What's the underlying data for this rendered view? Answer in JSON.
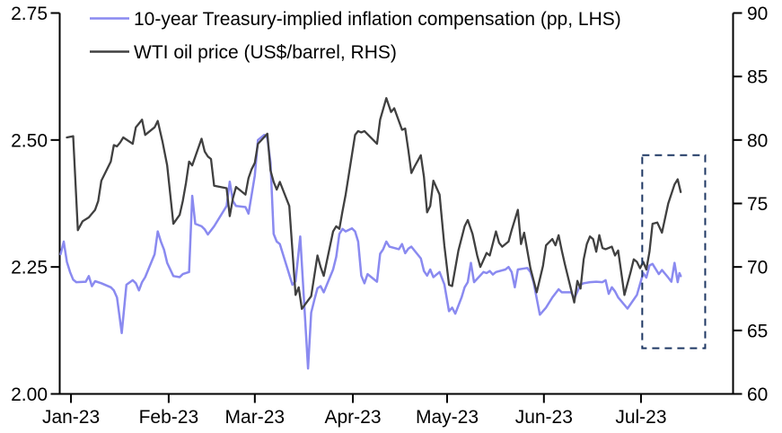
{
  "chart_data": {
    "type": "line",
    "title": "",
    "legend_position": "top-left",
    "grid": false,
    "left_axis": {
      "side": "left",
      "labels": [
        "2.75",
        "2.50",
        "2.25",
        "2.00"
      ],
      "values": [
        2.75,
        2.5,
        2.25,
        2.0
      ],
      "range": [
        2.0,
        2.75
      ]
    },
    "right_axis": {
      "side": "right",
      "labels": [
        "90",
        "85",
        "80",
        "75",
        "70",
        "65",
        "60"
      ],
      "values": [
        90,
        85,
        80,
        75,
        70,
        65,
        60
      ],
      "range": [
        60,
        90
      ]
    },
    "x_axis": {
      "tick_labels": [
        "Jan-23",
        "Feb-23",
        "Mar-23",
        "Apr-23",
        "May-23",
        "Jun-23",
        "Jul-23"
      ],
      "tick_days": [
        3.3,
        34.5,
        62,
        93.3,
        123.4,
        154.3,
        185.3
      ],
      "domain_days": [
        -0.3,
        214.7
      ]
    },
    "series": [
      {
        "id": "breakeven",
        "name": "10-year Treasury-implied inflation compensation (pp, LHS)",
        "axis": "left",
        "color": "#8A8AF0",
        "stroke_width": 2.5,
        "points": [
          [
            0,
            2.275
          ],
          [
            1,
            2.3
          ],
          [
            2,
            2.26
          ],
          [
            3,
            2.24
          ],
          [
            4,
            2.225
          ],
          [
            5,
            2.22
          ],
          [
            8,
            2.221
          ],
          [
            9,
            2.232
          ],
          [
            10,
            2.212
          ],
          [
            11,
            2.222
          ],
          [
            13,
            2.218
          ],
          [
            16,
            2.21
          ],
          [
            17,
            2.204
          ],
          [
            18,
            2.19
          ],
          [
            19.5,
            2.12
          ],
          [
            21,
            2.215
          ],
          [
            23,
            2.224
          ],
          [
            24,
            2.218
          ],
          [
            25,
            2.204
          ],
          [
            26,
            2.22
          ],
          [
            27,
            2.23
          ],
          [
            30,
            2.275
          ],
          [
            31,
            2.32
          ],
          [
            32,
            2.3
          ],
          [
            33,
            2.284
          ],
          [
            34,
            2.258
          ],
          [
            36,
            2.232
          ],
          [
            38,
            2.23
          ],
          [
            39,
            2.236
          ],
          [
            41,
            2.24
          ],
          [
            42,
            2.39
          ],
          [
            43,
            2.335
          ],
          [
            45,
            2.33
          ],
          [
            46,
            2.324
          ],
          [
            47,
            2.314
          ],
          [
            49,
            2.33
          ],
          [
            52,
            2.36
          ],
          [
            53,
            2.37
          ],
          [
            54,
            2.418
          ],
          [
            55,
            2.38
          ],
          [
            56,
            2.37
          ],
          [
            59,
            2.368
          ],
          [
            60,
            2.355
          ],
          [
            62,
            2.43
          ],
          [
            63,
            2.5
          ],
          [
            65,
            2.51
          ],
          [
            66,
            2.504
          ],
          [
            67,
            2.455
          ],
          [
            68,
            2.315
          ],
          [
            69,
            2.3
          ],
          [
            70,
            2.295
          ],
          [
            73,
            2.235
          ],
          [
            74,
            2.215
          ],
          [
            75,
            2.222
          ],
          [
            76.5,
            2.31
          ],
          [
            79,
            2.05
          ],
          [
            80,
            2.16
          ],
          [
            81,
            2.185
          ],
          [
            82,
            2.208
          ],
          [
            83,
            2.212
          ],
          [
            84,
            2.2
          ],
          [
            87,
            2.245
          ],
          [
            88,
            2.27
          ],
          [
            89,
            2.315
          ],
          [
            90,
            2.325
          ],
          [
            91,
            2.32
          ],
          [
            93,
            2.326
          ],
          [
            94,
            2.32
          ],
          [
            95,
            2.3
          ],
          [
            96,
            2.233
          ],
          [
            97,
            2.218
          ],
          [
            98,
            2.236
          ],
          [
            101,
            2.221
          ],
          [
            102,
            2.276
          ],
          [
            103,
            2.285
          ],
          [
            104,
            2.3
          ],
          [
            105,
            2.29
          ],
          [
            108,
            2.285
          ],
          [
            109,
            2.295
          ],
          [
            110,
            2.277
          ],
          [
            111,
            2.286
          ],
          [
            112,
            2.29
          ],
          [
            115,
            2.267
          ],
          [
            116,
            2.242
          ],
          [
            117,
            2.233
          ],
          [
            118,
            2.245
          ],
          [
            119,
            2.23
          ],
          [
            121,
            2.24
          ],
          [
            122.5,
            2.216
          ],
          [
            124,
            2.163
          ],
          [
            125,
            2.17
          ],
          [
            126,
            2.158
          ],
          [
            128,
            2.19
          ],
          [
            129,
            2.21
          ],
          [
            130,
            2.22
          ],
          [
            131,
            2.258
          ],
          [
            132,
            2.22
          ],
          [
            135,
            2.24
          ],
          [
            136,
            2.238
          ],
          [
            137,
            2.242
          ],
          [
            138,
            2.235
          ],
          [
            139,
            2.24
          ],
          [
            142,
            2.245
          ],
          [
            143,
            2.25
          ],
          [
            144,
            2.24
          ],
          [
            145,
            2.21
          ],
          [
            146,
            2.245
          ],
          [
            149,
            2.248
          ],
          [
            150,
            2.24
          ],
          [
            151,
            2.22
          ],
          [
            153,
            2.156
          ],
          [
            155,
            2.17
          ],
          [
            157,
            2.19
          ],
          [
            159,
            2.206
          ],
          [
            160,
            2.2
          ],
          [
            163,
            2.2
          ],
          [
            164,
            2.188
          ],
          [
            166,
            2.215
          ],
          [
            167,
            2.218
          ],
          [
            169,
            2.22
          ],
          [
            171,
            2.221
          ],
          [
            173,
            2.22
          ],
          [
            174,
            2.224
          ],
          [
            175,
            2.197
          ],
          [
            176,
            2.21
          ],
          [
            177,
            2.202
          ],
          [
            178,
            2.19
          ],
          [
            181,
            2.168
          ],
          [
            184,
            2.195
          ],
          [
            186,
            2.238
          ],
          [
            187,
            2.229
          ],
          [
            188,
            2.253
          ],
          [
            189,
            2.256
          ],
          [
            191,
            2.236
          ],
          [
            192,
            2.244
          ],
          [
            194,
            2.229
          ],
          [
            195,
            2.221
          ],
          [
            196,
            2.258
          ],
          [
            197,
            2.22
          ],
          [
            197.6,
            2.238
          ],
          [
            198,
            2.232
          ]
        ]
      },
      {
        "id": "wti",
        "name": "WTI oil price (US$/barrel, RHS)",
        "axis": "right",
        "color": "#404040",
        "stroke_width": 2.3,
        "points": [
          [
            2,
            80.2
          ],
          [
            4,
            80.3
          ],
          [
            5.5,
            72.9
          ],
          [
            7,
            73.6
          ],
          [
            9,
            73.9
          ],
          [
            10,
            74.2
          ],
          [
            11,
            74.5
          ],
          [
            12,
            75.2
          ],
          [
            13,
            76.8
          ],
          [
            16,
            78.3
          ],
          [
            17,
            79.6
          ],
          [
            18,
            79.5
          ],
          [
            19,
            79.8
          ],
          [
            20,
            80.2
          ],
          [
            23,
            79.7
          ],
          [
            24,
            81.0
          ],
          [
            25,
            81.3
          ],
          [
            26,
            81.6
          ],
          [
            27,
            80.4
          ],
          [
            30,
            81.0
          ],
          [
            31,
            81.5
          ],
          [
            32.5,
            79.9
          ],
          [
            34,
            78.0
          ],
          [
            36,
            73.4
          ],
          [
            38,
            74.1
          ],
          [
            39,
            75.2
          ],
          [
            40,
            76.6
          ],
          [
            41,
            78.3
          ],
          [
            42,
            78.0
          ],
          [
            45,
            80.1
          ],
          [
            46,
            79.1
          ],
          [
            47,
            78.7
          ],
          [
            48,
            78.5
          ],
          [
            49,
            76.4
          ],
          [
            53,
            76.2
          ],
          [
            54,
            74.0
          ],
          [
            55,
            75.4
          ],
          [
            56,
            76.3
          ],
          [
            59,
            75.7
          ],
          [
            60,
            77.0
          ],
          [
            61,
            77.7
          ],
          [
            62,
            78.2
          ],
          [
            63,
            79.7
          ],
          [
            66,
            80.5
          ],
          [
            67,
            77.6
          ],
          [
            68,
            76.7
          ],
          [
            69,
            76.1
          ],
          [
            70,
            76.7
          ],
          [
            73,
            74.8
          ],
          [
            74,
            71.3
          ],
          [
            75,
            67.8
          ],
          [
            76,
            68.4
          ],
          [
            77,
            66.7
          ],
          [
            80,
            67.7
          ],
          [
            81,
            69.3
          ],
          [
            82,
            70.9
          ],
          [
            83,
            70.0
          ],
          [
            84,
            69.3
          ],
          [
            87,
            72.8
          ],
          [
            88,
            73.2
          ],
          [
            89,
            73.0
          ],
          [
            90,
            74.4
          ],
          [
            91,
            75.7
          ],
          [
            94,
            80.4
          ],
          [
            95,
            80.7
          ],
          [
            96,
            80.6
          ],
          [
            97,
            80.7
          ],
          [
            101,
            79.7
          ],
          [
            102,
            81.6
          ],
          [
            104,
            83.3
          ],
          [
            105.5,
            82.2
          ],
          [
            106.5,
            82.5
          ],
          [
            109,
            80.8
          ],
          [
            110,
            80.9
          ],
          [
            111,
            79.2
          ],
          [
            112,
            77.4
          ],
          [
            113,
            77.9
          ],
          [
            115,
            78.8
          ],
          [
            116,
            77.1
          ],
          [
            117,
            74.3
          ],
          [
            118,
            74.8
          ],
          [
            119,
            76.8
          ],
          [
            121,
            75.7
          ],
          [
            122.5,
            71.7
          ],
          [
            124,
            68.6
          ],
          [
            125,
            68.5
          ],
          [
            127,
            71.3
          ],
          [
            129,
            73.2
          ],
          [
            130,
            73.7
          ],
          [
            131.5,
            72.6
          ],
          [
            133,
            70.9
          ],
          [
            134,
            70.0
          ],
          [
            136,
            71.1
          ],
          [
            137,
            70.9
          ],
          [
            139,
            72.8
          ],
          [
            140,
            71.9
          ],
          [
            141,
            71.6
          ],
          [
            143,
            72.0
          ],
          [
            144,
            72.9
          ],
          [
            146,
            74.5
          ],
          [
            147,
            71.8
          ],
          [
            148,
            72.7
          ],
          [
            150,
            69.9
          ],
          [
            152,
            68.0
          ],
          [
            154,
            70.1
          ],
          [
            155,
            71.7
          ],
          [
            157,
            72.2
          ],
          [
            158,
            71.7
          ],
          [
            159,
            72.5
          ],
          [
            160,
            71.3
          ],
          [
            161,
            70.2
          ],
          [
            164,
            67.2
          ],
          [
            165,
            68.9
          ],
          [
            166,
            68.3
          ],
          [
            167,
            70.6
          ],
          [
            168,
            71.8
          ],
          [
            169,
            72.4
          ],
          [
            170,
            72.2
          ],
          [
            171,
            71.2
          ],
          [
            172,
            72.5
          ],
          [
            173,
            71.5
          ],
          [
            174,
            71.4
          ],
          [
            176,
            71.6
          ],
          [
            177,
            70.9
          ],
          [
            178,
            71.3
          ],
          [
            180,
            67.8
          ],
          [
            182,
            69.6
          ],
          [
            183,
            70.6
          ],
          [
            184,
            70.4
          ],
          [
            185,
            69.9
          ],
          [
            186,
            70.4
          ],
          [
            187,
            69.8
          ],
          [
            188,
            71.2
          ],
          [
            189,
            73.4
          ],
          [
            190.5,
            73.5
          ],
          [
            192,
            72.7
          ],
          [
            194,
            75.0
          ],
          [
            196,
            76.5
          ],
          [
            197,
            76.9
          ],
          [
            198,
            75.9
          ]
        ]
      }
    ],
    "highlight_box": {
      "day_start": 185.7,
      "day_end": 205.8,
      "rhs_low": 63.6,
      "rhs_high": 78.8,
      "color": "#1F3864"
    }
  }
}
